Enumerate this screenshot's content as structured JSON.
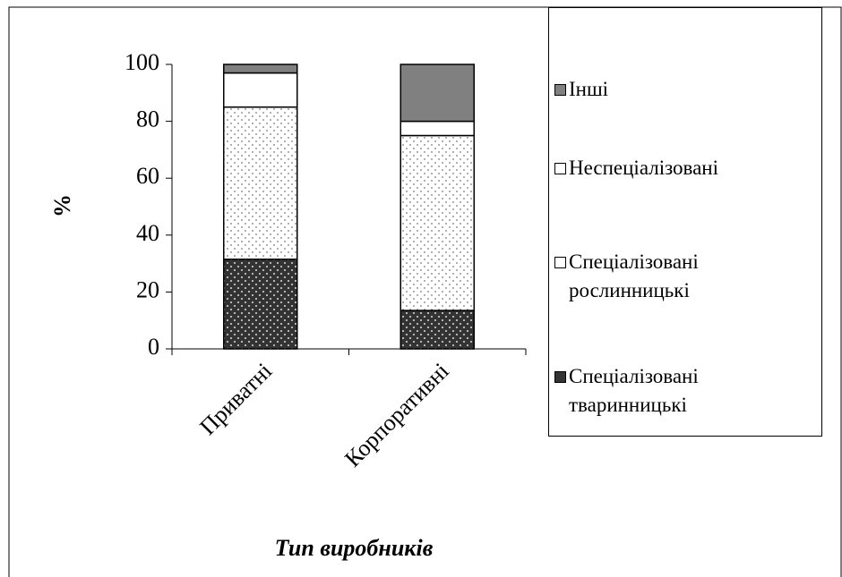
{
  "chart_data": {
    "type": "stacked_bar",
    "y_label": "%",
    "x_label": "Тип виробників",
    "categories": [
      "Приватні",
      "Корпоративні"
    ],
    "series": [
      {
        "name": "Спеціалізовані тваринницькі",
        "color": "#333333",
        "pattern": "dots",
        "values": [
          31.5,
          13.5
        ]
      },
      {
        "name": "Спеціалізовані рослинницькі",
        "color": "#ffffff",
        "pattern": "dots",
        "values": [
          53.5,
          61.5
        ]
      },
      {
        "name": "Неспеціалізовані",
        "color": "#ffffff",
        "values": [
          12,
          5
        ]
      },
      {
        "name": "Інші",
        "color": "#808080",
        "values": [
          3,
          20
        ]
      }
    ],
    "ylim": [
      0,
      100
    ],
    "yticks": [
      0,
      20,
      40,
      60,
      80,
      100
    ],
    "legend": "right"
  }
}
